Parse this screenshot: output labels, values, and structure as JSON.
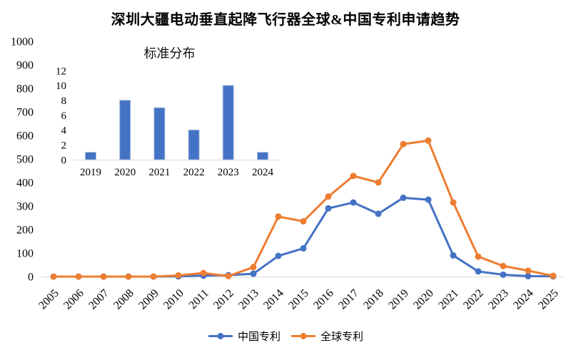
{
  "title": "深圳大疆电动垂直起降飞行器全球&中国专利申请趋势",
  "colors": {
    "china_series": "#4472C4",
    "global_series": "#ED7D31",
    "axis_line": "#d9d9d9",
    "bar_edge": "#a9bede",
    "text": "#000000"
  },
  "chart_data": [
    {
      "id": "main-trend",
      "type": "line",
      "title": "深圳大疆电动垂直起降飞行器全球&中国专利申请趋势",
      "categories": [
        "2005",
        "2006",
        "2007",
        "2008",
        "2009",
        "2010",
        "2011",
        "2012",
        "2013",
        "2014",
        "2015",
        "2016",
        "2017",
        "2018",
        "2019",
        "2020",
        "2021",
        "2022",
        "2023",
        "2024",
        "2025"
      ],
      "series": [
        {
          "name": "中国专利",
          "color": "#4472C4",
          "values": [
            0,
            0,
            0,
            0,
            0,
            1,
            4,
            6,
            12,
            88,
            120,
            290,
            315,
            267,
            335,
            327,
            90,
            22,
            8,
            2,
            1
          ]
        },
        {
          "name": "全球专利",
          "color": "#ED7D31",
          "values": [
            0,
            0,
            0,
            0,
            0,
            5,
            15,
            2,
            40,
            255,
            235,
            340,
            428,
            400,
            563,
            578,
            315,
            85,
            45,
            25,
            3
          ]
        }
      ],
      "xlabel": "",
      "ylabel": "",
      "ylim": [
        0,
        1000
      ],
      "ytick_step": 100,
      "grid": false,
      "legend_position": "bottom",
      "x_label_rotation_deg": -45
    },
    {
      "id": "inset-standards",
      "type": "bar",
      "title": "标准分布",
      "categories": [
        "2019",
        "2020",
        "2021",
        "2022",
        "2023",
        "2024"
      ],
      "values": [
        1,
        8,
        7,
        4,
        10,
        1
      ],
      "xlabel": "",
      "ylabel": "",
      "ylim": [
        0,
        12
      ],
      "ytick_step": 2,
      "grid": false,
      "bar_color": "#4472C4"
    }
  ]
}
